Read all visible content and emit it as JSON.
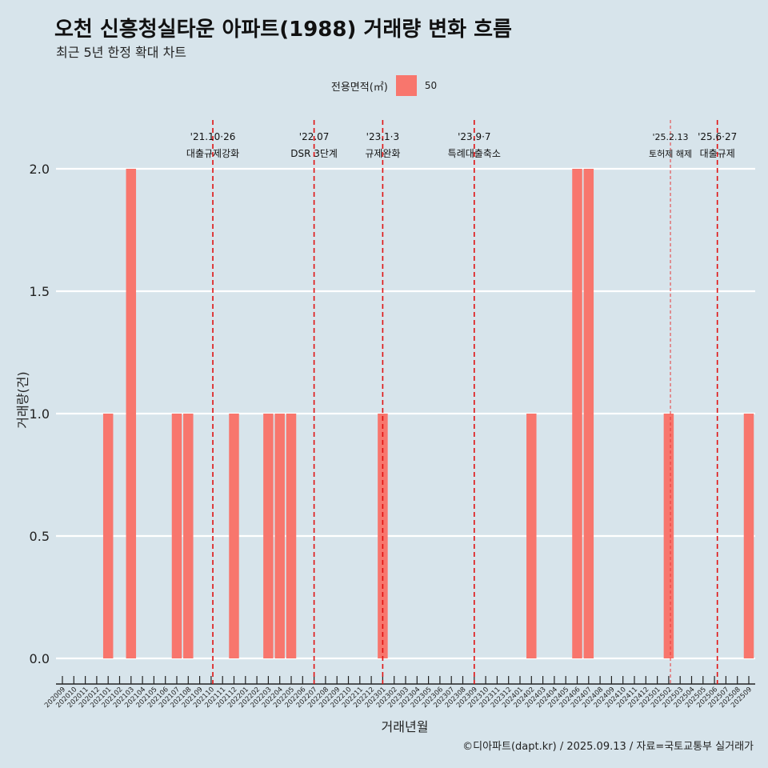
{
  "header": {
    "title": "오천 신흥청실타운 아파트(1988) 거래량 변화 흐름",
    "subtitle": "최근 5년 한정 확대 차트"
  },
  "legend": {
    "title": "전용면적(㎡)",
    "items": [
      {
        "label": "50",
        "color": "#f8766d"
      }
    ]
  },
  "caption": "©디아파트(dapt.kr) / 2025.09.13 / 자료=국토교통부 실거래가",
  "chart_data": {
    "type": "bar",
    "xlabel": "거래년월",
    "ylabel": "거래량(건)",
    "ylim": [
      0,
      2.1
    ],
    "yticks": [
      "0.0",
      "0.5",
      "1.0",
      "1.5",
      "2.0"
    ],
    "ytick_values": [
      0,
      0.5,
      1.0,
      1.5,
      2.0
    ],
    "grid": true,
    "legend_position": "top",
    "bar_color": "#f8766d",
    "categories": [
      "202009",
      "202010",
      "202011",
      "202012",
      "202101",
      "202102",
      "202103",
      "202104",
      "202105",
      "202106",
      "202107",
      "202108",
      "202109",
      "202110",
      "202111",
      "202112",
      "202201",
      "202202",
      "202203",
      "202204",
      "202205",
      "202206",
      "202207",
      "202208",
      "202209",
      "202210",
      "202211",
      "202212",
      "202301",
      "202302",
      "202303",
      "202304",
      "202305",
      "202306",
      "202307",
      "202308",
      "202309",
      "202310",
      "202311",
      "202312",
      "202401",
      "202402",
      "202403",
      "202404",
      "202405",
      "202406",
      "202407",
      "202408",
      "202409",
      "202410",
      "202411",
      "202412",
      "202501",
      "202502",
      "202503",
      "202504",
      "202505",
      "202506",
      "202507",
      "202508",
      "202509"
    ],
    "series": [
      {
        "name": "50",
        "values": [
          0,
          0,
          0,
          0,
          1,
          0,
          2,
          0,
          0,
          0,
          1,
          1,
          0,
          0,
          0,
          1,
          0,
          0,
          1,
          1,
          1,
          0,
          0,
          0,
          0,
          0,
          0,
          0,
          1,
          0,
          0,
          0,
          0,
          0,
          0,
          0,
          0,
          0,
          0,
          0,
          0,
          1,
          0,
          0,
          0,
          2,
          2,
          0,
          0,
          0,
          0,
          0,
          0,
          1,
          0,
          0,
          0,
          0,
          0,
          0,
          1
        ]
      }
    ],
    "annotations": [
      {
        "x": "202110",
        "offset": 0.15,
        "date": "'21.10·26",
        "text": "대출규제강화",
        "style": "dashed"
      },
      {
        "x": "202207",
        "offset": 0.0,
        "date": "'22.07",
        "text": "DSR 3단계",
        "style": "dashed"
      },
      {
        "x": "202301",
        "offset": 0.0,
        "date": "'23.1·3",
        "text": "규제완화",
        "style": "dashed"
      },
      {
        "x": "202309",
        "offset": 0.0,
        "date": "'23.9·7",
        "text": "특례대출축소",
        "style": "dashed"
      },
      {
        "x": "202502",
        "offset": 0.15,
        "date": "'25.2.13",
        "text": "토허제 해제",
        "style": "thin"
      },
      {
        "x": "202506",
        "offset": 0.25,
        "date": "'25.6·27",
        "text": "대출규제",
        "style": "dashed"
      }
    ]
  }
}
